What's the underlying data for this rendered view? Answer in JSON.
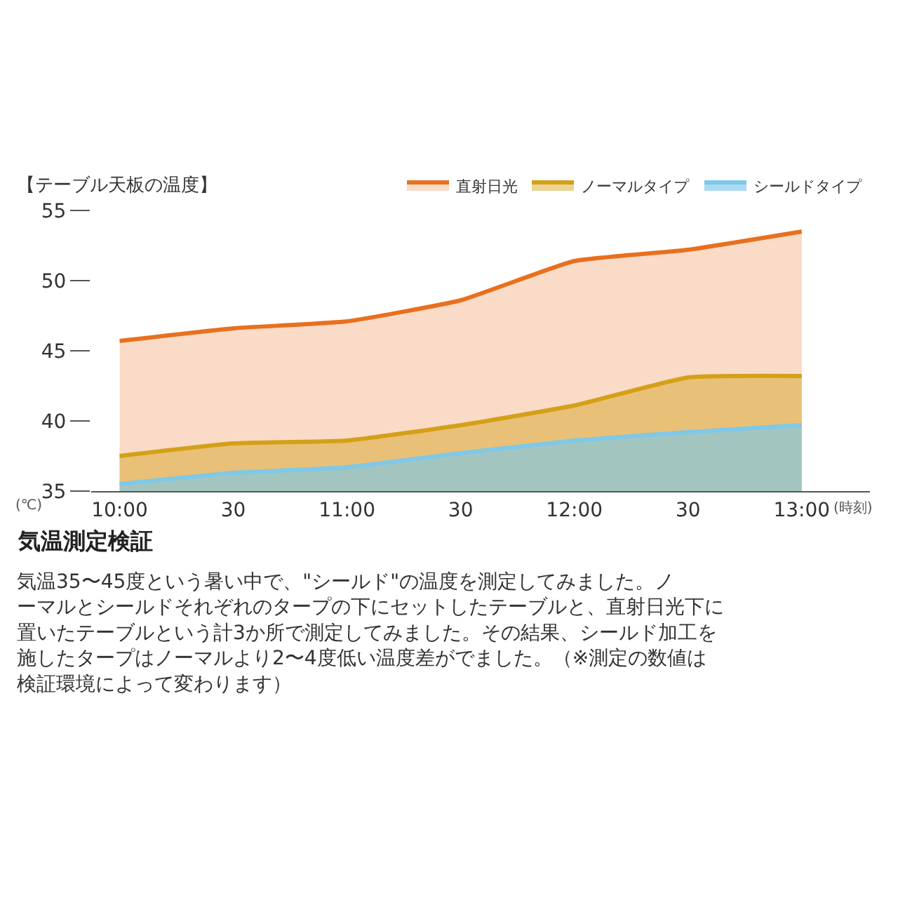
{
  "chart_data": {
    "type": "area",
    "title": "【テーブル天板の温度】",
    "xlabel": "(時刻)",
    "ylabel": "(℃)",
    "categories": [
      "10:00",
      "30",
      "11:00",
      "30",
      "12:00",
      "30",
      "13:00"
    ],
    "series": [
      {
        "name": "直射日光",
        "color": "#e8701e",
        "values": [
          45.7,
          46.6,
          47.1,
          48.6,
          51.4,
          52.2,
          53.5
        ]
      },
      {
        "name": "ノーマルタイプ",
        "color": "#d4a017",
        "values": [
          37.5,
          38.4,
          38.6,
          39.7,
          41.1,
          43.1,
          43.2
        ]
      },
      {
        "name": "シールドタイプ",
        "color": "#7ec8e8",
        "values": [
          35.5,
          36.3,
          36.7,
          37.7,
          38.6,
          39.2,
          39.7
        ]
      }
    ],
    "ylim": [
      35,
      55
    ],
    "yticks": [
      35,
      40,
      45,
      50,
      55
    ],
    "legend": "top right",
    "annotations": [
      "気温測定検証",
      "気温35〜45度という暑い中で、\"シールド\"の温度を測定してみました。ノーマルとシールドそれぞれのタープの下にセットしたテーブルと、直射日光下に置いたテーブルという計3か所で測定してみました。その結果、シールド加工を施したタープはノーマルより2〜4度低い温度差がでました。（※測定の数値は検証環境によって変わります）"
    ]
  }
}
